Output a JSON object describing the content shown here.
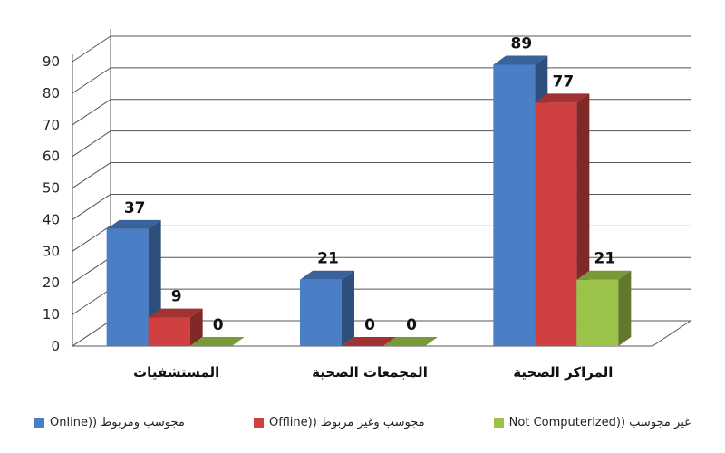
{
  "chart_data": {
    "type": "bar",
    "categories": [
      "المستشفيات",
      "المجمعات الصحية",
      "المراكز الصحية"
    ],
    "series": [
      {
        "name": "مجوسب ومربوط ((Online",
        "values": [
          37,
          21,
          89
        ],
        "color": "#4a7fc8"
      },
      {
        "name": "مجوسب وغير مربوط ((Offline",
        "values": [
          9,
          0,
          77
        ],
        "color": "#d04040"
      },
      {
        "name": "غير مجوسب ((Not Computerized",
        "values": [
          0,
          0,
          21
        ],
        "color": "#9bc34a"
      }
    ],
    "y_ticks": [
      0,
      10,
      20,
      30,
      40,
      50,
      60,
      70,
      80,
      90
    ],
    "ylim": [
      0,
      90
    ],
    "grid": true,
    "legend_position": "bottom",
    "three_d": true
  },
  "legend": {
    "items": [
      {
        "label": "Online)) مجوسب ومربوط",
        "color": "#4a7fc8"
      },
      {
        "label": "Offline)) مجوسب وغير مربوط",
        "color": "#d04040"
      },
      {
        "label": "Not Computerized)) غير مجوسب",
        "color": "#9bc34a"
      }
    ]
  }
}
